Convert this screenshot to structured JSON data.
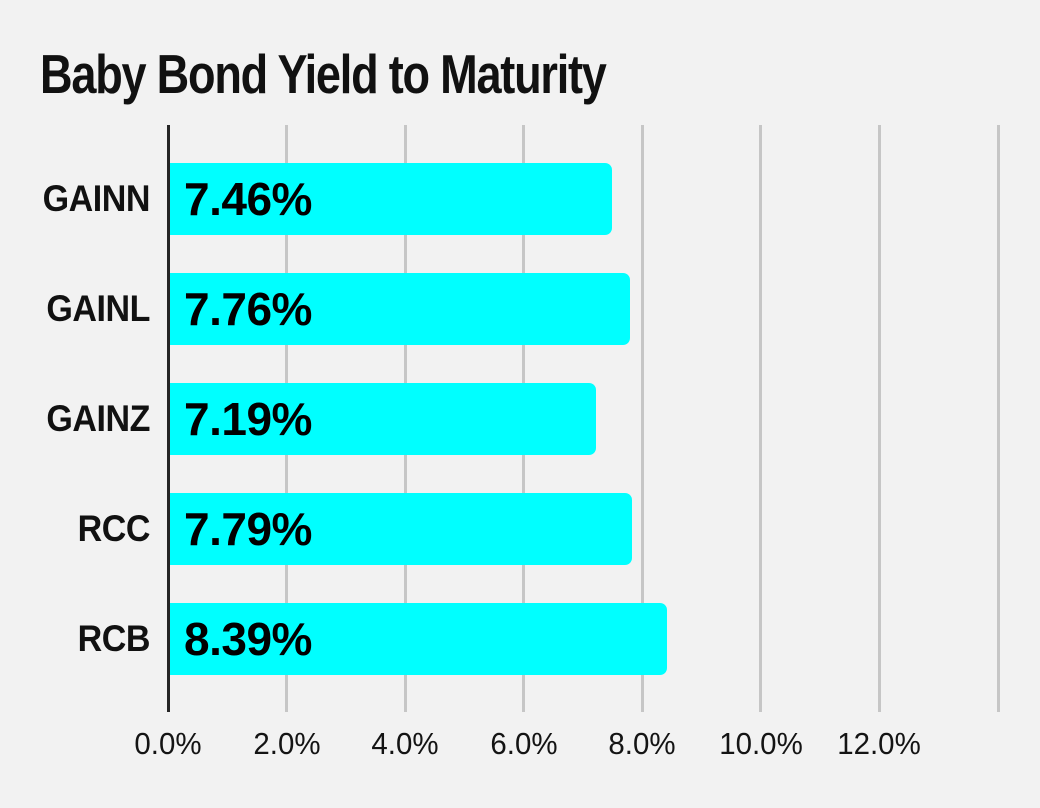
{
  "title": "Baby Bond Yield to Maturity",
  "colors": {
    "background": "#f2f2f2",
    "bar": "#00ffff",
    "gridline": "#c6c6c6",
    "axis_line": "#262626",
    "text": "#111111"
  },
  "chart_data": {
    "type": "bar",
    "orientation": "horizontal",
    "title": "Baby Bond Yield to Maturity",
    "xlabel": "",
    "ylabel": "",
    "categories": [
      "GAINN",
      "GAINL",
      "GAINZ",
      "RCC",
      "RCB"
    ],
    "values": [
      7.46,
      7.76,
      7.19,
      7.79,
      8.39
    ],
    "value_labels": [
      "7.46%",
      "7.76%",
      "7.19%",
      "7.79%",
      "8.39%"
    ],
    "xlim": [
      0,
      14
    ],
    "x_ticks": [
      0,
      2,
      4,
      6,
      8,
      10,
      12
    ],
    "x_tick_labels": [
      "0.0%",
      "2.0%",
      "4.0%",
      "6.0%",
      "8.0%",
      "10.0%",
      "12.0%"
    ],
    "gridline_values": [
      2,
      4,
      6,
      8,
      10,
      12,
      14
    ],
    "grid": "vertical-only",
    "legend": "none",
    "value_labels_position": "inside-left"
  }
}
